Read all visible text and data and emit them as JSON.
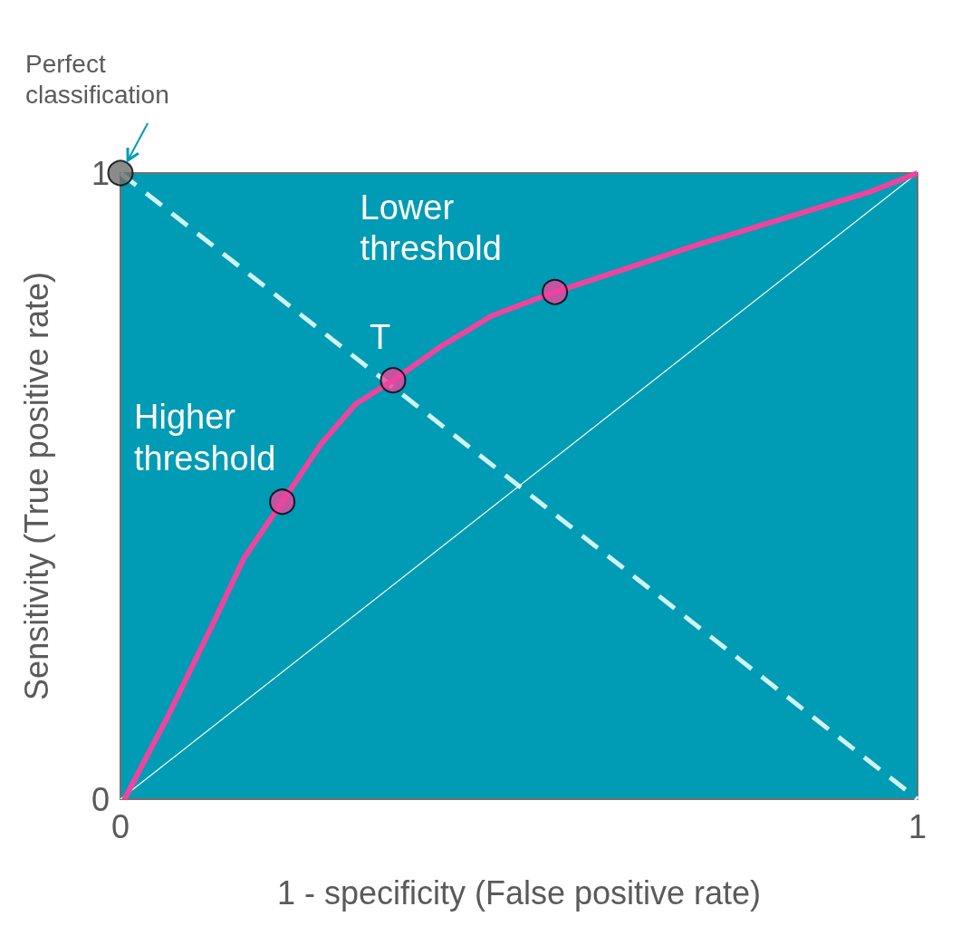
{
  "chart_data": {
    "type": "line",
    "xlabel": "1 - specificity (False positive rate)",
    "ylabel": "Sensitivity (True positive rate)",
    "xlim": [
      0,
      1
    ],
    "ylim": [
      0,
      1
    ],
    "xticks": [
      0,
      1
    ],
    "yticks": [
      0,
      1
    ],
    "grid": false,
    "series": [
      {
        "type": "line",
        "color": "#d0f4f4",
        "line_style": "dashed",
        "marker": "none",
        "x": [
          0,
          1
        ],
        "values": [
          1,
          0
        ]
      },
      {
        "type": "line",
        "color": "#ffffff",
        "line_style": "solid",
        "marker": "none",
        "x": [
          0,
          1
        ],
        "values": [
          0,
          1
        ]
      },
      {
        "color": "#f0439e",
        "line_style": "solid",
        "marker": "none",
        "x": [
          0.005,
          0.059,
          0.113,
          0.155,
          0.203,
          0.252,
          0.295,
          0.342,
          0.402,
          0.466,
          0.545,
          0.638,
          0.723,
          0.831,
          0.938,
          1
        ],
        "values": [
          0,
          0.131,
          0.272,
          0.385,
          0.475,
          0.568,
          0.631,
          0.669,
          0.723,
          0.772,
          0.81,
          0.849,
          0.885,
          0.927,
          0.969,
          1
        ]
      },
      {
        "type": "scatter",
        "color": "#f0439e",
        "marker": "circle",
        "x": [
          0.203,
          0.342,
          0.545
        ],
        "values": [
          0.475,
          0.669,
          0.81
        ]
      },
      {
        "type": "scatter",
        "color": "#6e6e6e",
        "marker": "circle",
        "x": [
          0
        ],
        "values": [
          1
        ]
      }
    ],
    "annotations": [
      {
        "text": "Perfect classification",
        "x": 0,
        "y": 1
      },
      {
        "text": "Higher threshold",
        "x": 0.203,
        "y": 0.475
      },
      {
        "text": "T",
        "x": 0.342,
        "y": 0.669
      },
      {
        "text": "Lower threshold",
        "x": 0.545,
        "y": 0.81
      }
    ]
  }
}
